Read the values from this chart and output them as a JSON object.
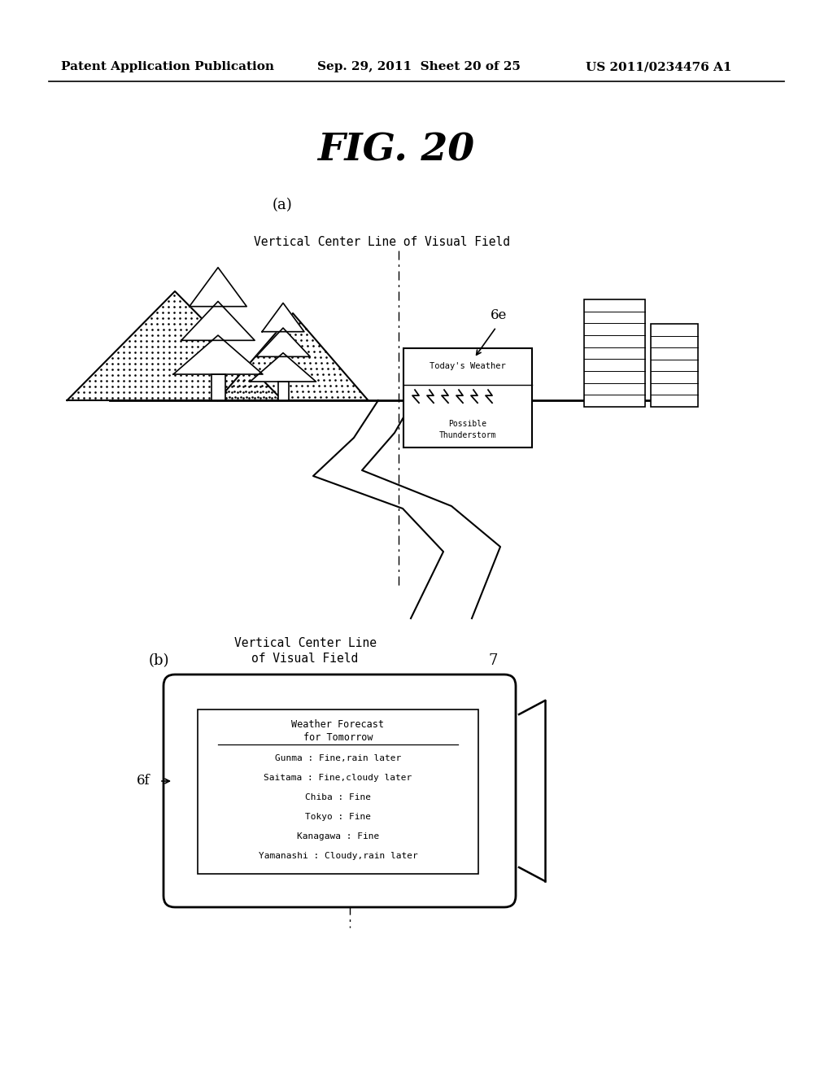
{
  "title": "FIG. 20",
  "header_left": "Patent Application Publication",
  "header_center": "Sep. 29, 2011  Sheet 20 of 25",
  "header_right": "US 2011/0234476 A1",
  "bg_color": "#ffffff",
  "line_color": "#000000",
  "label_a": "(a)",
  "label_b": "(b)",
  "vcl_label_a": "Vertical Center Line of Visual Field",
  "vcl_label_b": "Vertical Center Line\nof Visual Field",
  "label_6e": "6e",
  "label_6f": "6f",
  "label_7": "7",
  "weather_box_title": "Today's Weather",
  "weather_box_body": "Possible\nThunderstorm",
  "forecast_title_line1": "Weather Forecast",
  "forecast_title_line2": "for Tomorrow",
  "forecast_lines": [
    "Gunma : Fine,rain later",
    "Saitama : Fine,cloudy later",
    "Chiba : Fine",
    "Tokyo : Fine",
    "Kanagawa : Fine",
    "Yamanashi : Cloudy,rain later"
  ]
}
